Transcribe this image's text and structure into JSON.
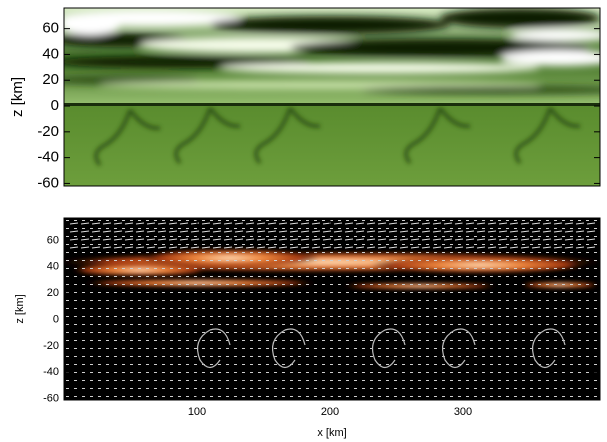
{
  "chart_data": [
    {
      "type": "image",
      "ylabel": "z [km]",
      "xlim": [
        0,
        403
      ],
      "ylim": [
        -62,
        76
      ],
      "yticks": [
        -60,
        -40,
        -20,
        0,
        20,
        40,
        60
      ]
    },
    {
      "type": "image",
      "xlabel": "x [km]",
      "ylabel": "z [km]",
      "xlim": [
        0,
        403
      ],
      "ylim": [
        -61,
        77
      ],
      "xticks": [
        100,
        200,
        300
      ],
      "yticks": [
        -60,
        -40,
        -20,
        0,
        20,
        40,
        60
      ]
    }
  ]
}
